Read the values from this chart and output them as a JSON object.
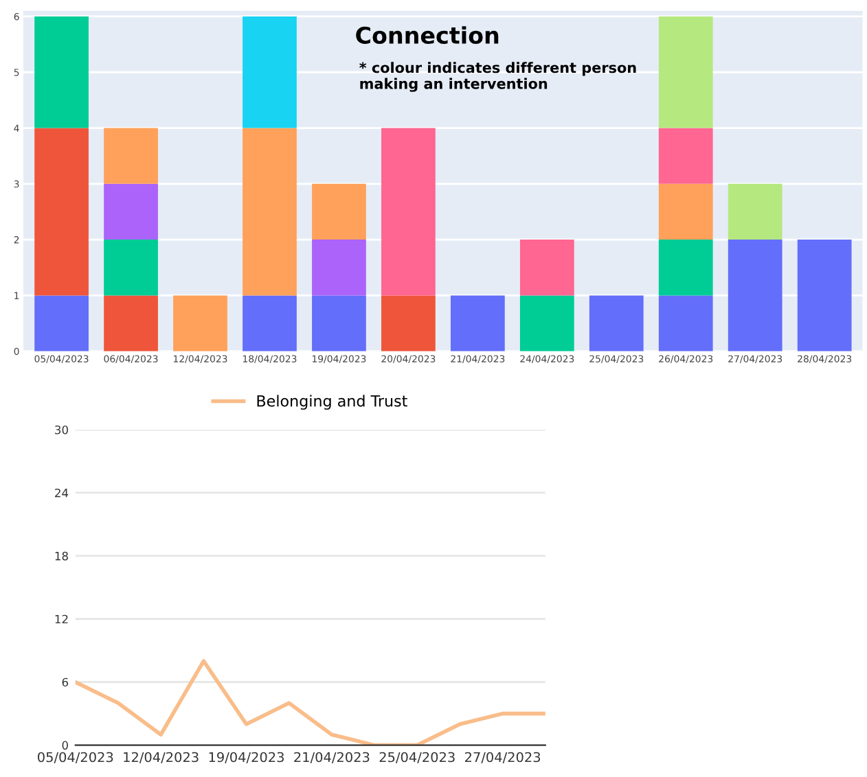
{
  "chart_data": [
    {
      "type": "bar",
      "title": "Connection",
      "subtitle": "* colour indicates different person\nmaking an intervention",
      "stacked": true,
      "grid": "y",
      "legend": false,
      "categories": [
        "05/04/2023",
        "06/04/2023",
        "12/04/2023",
        "18/04/2023",
        "19/04/2023",
        "20/04/2023",
        "21/04/2023",
        "24/04/2023",
        "25/04/2023",
        "26/04/2023",
        "27/04/2023",
        "28/04/2023"
      ],
      "ylim": [
        0,
        6.1
      ],
      "yticks": [
        0,
        1,
        2,
        3,
        4,
        5,
        6
      ],
      "series": [
        {
          "color": "#636efa",
          "values": [
            1,
            null,
            null,
            1,
            1,
            null,
            1,
            null,
            1,
            1,
            2,
            2
          ]
        },
        {
          "color": "#ef553b",
          "values": [
            3,
            1,
            null,
            null,
            null,
            1,
            null,
            null,
            null,
            null,
            null,
            null
          ]
        },
        {
          "color": "#00cc96",
          "values": [
            2,
            1,
            null,
            null,
            null,
            null,
            null,
            1,
            null,
            1,
            null,
            null
          ]
        },
        {
          "color": "#ab63fa",
          "values": [
            null,
            1,
            null,
            null,
            1,
            null,
            null,
            null,
            null,
            null,
            null,
            null
          ]
        },
        {
          "color": "#ffa15a",
          "values": [
            null,
            1,
            1,
            3,
            1,
            null,
            null,
            null,
            null,
            1,
            null,
            null
          ]
        },
        {
          "color": "#19d3f3",
          "values": [
            null,
            null,
            null,
            2,
            null,
            null,
            null,
            null,
            null,
            null,
            null,
            null
          ]
        },
        {
          "color": "#ff6692",
          "values": [
            null,
            null,
            null,
            null,
            null,
            3,
            null,
            1,
            null,
            1,
            null,
            null
          ]
        },
        {
          "color": "#b6e880",
          "values": [
            null,
            null,
            null,
            null,
            null,
            null,
            null,
            null,
            null,
            2,
            1,
            null
          ]
        }
      ]
    },
    {
      "type": "line",
      "grid": "y",
      "legend": "top",
      "marker": "none",
      "categories": [
        "05/04/2023",
        null,
        "12/04/2023",
        null,
        "19/04/2023",
        null,
        "21/04/2023",
        null,
        "25/04/2023",
        null,
        "27/04/2023",
        null
      ],
      "ylim": [
        0,
        30
      ],
      "yticks": [
        0,
        6,
        12,
        18,
        24,
        30
      ],
      "series": [
        {
          "name": "Belonging and Trust",
          "color": "#f9bd8a",
          "values": [
            6,
            4,
            1,
            8,
            2,
            4,
            1,
            0,
            0,
            2,
            3,
            3
          ]
        }
      ]
    }
  ]
}
